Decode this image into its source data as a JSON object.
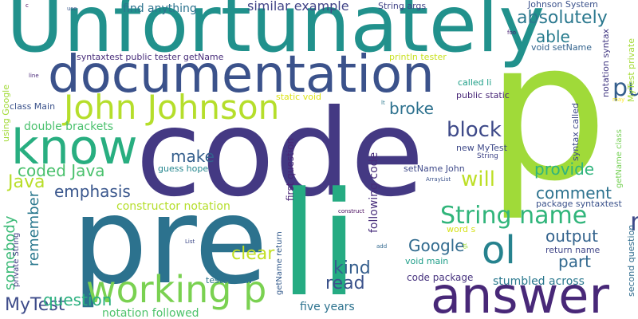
{
  "words": [
    {
      "text": "Unfortunately",
      "color": "#21918c"
    },
    {
      "text": "documentation",
      "color": "#3b528b"
    },
    {
      "text": "code",
      "color": "#443983"
    },
    {
      "text": "p",
      "color": "#a0da39"
    },
    {
      "text": "pre",
      "color": "#2c728e"
    },
    {
      "text": "li",
      "color": "#25ab82"
    },
    {
      "text": "answer",
      "color": "#482878"
    },
    {
      "text": "know",
      "color": "#28ae80"
    },
    {
      "text": "John Johnson",
      "color": "#b5de2b"
    },
    {
      "text": "working p",
      "color": "#7ad151"
    },
    {
      "text": "ol",
      "color": "#26828e"
    },
    {
      "text": "String name",
      "color": "#31b57b"
    },
    {
      "text": "public",
      "color": "#355f8d"
    },
    {
      "text": "name",
      "color": "#3e4989"
    },
    {
      "text": "absolutely",
      "color": "#2a788e"
    },
    {
      "text": "able",
      "color": "#287c8e"
    },
    {
      "text": "block",
      "color": "#3e4a89"
    },
    {
      "text": "provide",
      "color": "#2fb47c"
    },
    {
      "text": "will",
      "color": "#bddf26"
    },
    {
      "text": "comment",
      "color": "#2c728e"
    },
    {
      "text": "output",
      "color": "#33638d"
    },
    {
      "text": "part",
      "color": "#31688e"
    },
    {
      "text": "kind",
      "color": "#355e8d"
    },
    {
      "text": "read",
      "color": "#3b528b"
    },
    {
      "text": "clear",
      "color": "#c2df23"
    },
    {
      "text": "Google",
      "color": "#306a8e"
    },
    {
      "text": "MyTest",
      "color": "#3e4c8a"
    },
    {
      "text": "Java",
      "color": "#b8de29"
    },
    {
      "text": "coded Java",
      "color": "#4ac16d"
    },
    {
      "text": "emphasis",
      "color": "#39568c"
    },
    {
      "text": "make",
      "color": "#355f8d"
    },
    {
      "text": "broke",
      "color": "#2d718e"
    },
    {
      "text": "question",
      "color": "#2ab07f"
    },
    {
      "text": "somebody",
      "color": "#3aba76"
    },
    {
      "text": "remember",
      "color": "#2a788e"
    },
    {
      "text": "similar example",
      "color": "#414487"
    },
    {
      "text": "find anything",
      "color": "#2c738e"
    },
    {
      "text": "double brackets",
      "color": "#4ac16d"
    },
    {
      "text": "constructor notation",
      "color": "#b5de2b"
    },
    {
      "text": "notation followed",
      "color": "#4ec36b"
    },
    {
      "text": "five years",
      "color": "#2c728e"
    },
    {
      "text": "stumbled across",
      "color": "#2a788e"
    },
    {
      "text": "code package",
      "color": "#46327e"
    },
    {
      "text": "following code",
      "color": "#472d7b"
    },
    {
      "text": "first question",
      "color": "#482475"
    },
    {
      "text": "syntaxtest public tester getName",
      "color": "#472c7a"
    },
    {
      "text": "String args",
      "color": "#414487"
    },
    {
      "text": "Johnson System",
      "color": "#3b528b"
    },
    {
      "text": "void setName",
      "color": "#33638d"
    },
    {
      "text": "notation syntax",
      "color": "#443a83"
    },
    {
      "text": "MyTest private",
      "color": "#a5db36"
    },
    {
      "text": "println tester",
      "color": "#c8e020"
    },
    {
      "text": "called li",
      "color": "#1fa088"
    },
    {
      "text": "public static",
      "color": "#482677"
    },
    {
      "text": "static void",
      "color": "#dde318"
    },
    {
      "text": "class Main",
      "color": "#3b528b"
    },
    {
      "text": "using Google",
      "color": "#a2da37"
    },
    {
      "text": "syntax called",
      "color": "#3e4a89"
    },
    {
      "text": "new MyTest",
      "color": "#3e4989"
    },
    {
      "text": "setName John",
      "color": "#3e4989"
    },
    {
      "text": "package syntaxtest",
      "color": "#3b528b"
    },
    {
      "text": "return name",
      "color": "#404688"
    },
    {
      "text": "second question",
      "color": "#2f6c8e"
    },
    {
      "text": "getName class",
      "color": "#75d054"
    },
    {
      "text": "guess hope",
      "color": "#24868e"
    },
    {
      "text": "word s",
      "color": "#d5e21a"
    },
    {
      "text": "tester new",
      "color": "#2c728e"
    },
    {
      "text": "private String",
      "color": "#424086"
    },
    {
      "text": "void main",
      "color": "#1f9e89"
    },
    {
      "text": "getName return",
      "color": "#365c8d"
    },
    {
      "text": "String",
      "color": "#404688"
    },
    {
      "text": "ArrayList",
      "color": "#3b528b"
    },
    {
      "text": "List",
      "color": "#3e4a89"
    },
    {
      "text": "line",
      "color": "#482878"
    },
    {
      "text": "use",
      "color": "#39568c"
    },
    {
      "text": "foo",
      "color": "#482173"
    },
    {
      "text": "may",
      "color": "#fde725"
    },
    {
      "text": "lt",
      "color": "#2a788e"
    },
    {
      "text": "add",
      "color": "#31688e"
    },
    {
      "text": "gt",
      "color": "#9fda3a"
    },
    {
      "text": "c",
      "color": "#440154"
    },
    {
      "text": "construct",
      "color": "#46085c"
    }
  ]
}
